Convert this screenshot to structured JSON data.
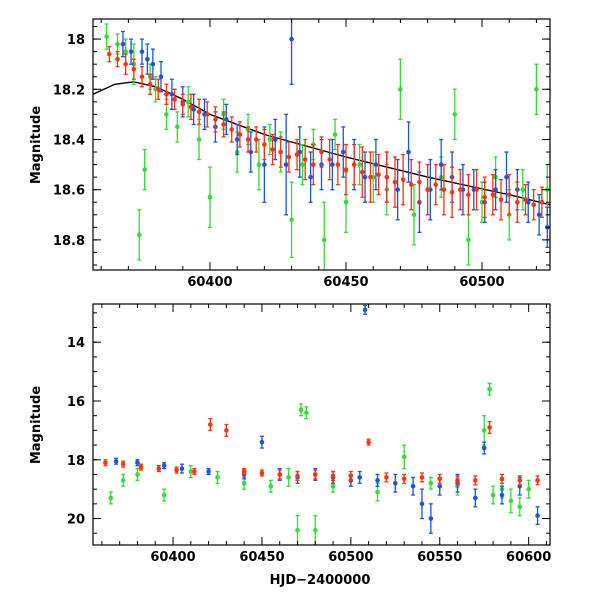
{
  "chart_data": [
    {
      "type": "scatter",
      "title": "",
      "xlabel": "",
      "ylabel": "Magnitude",
      "xlim": [
        60357,
        60525
      ],
      "ylim": [
        18.92,
        17.92
      ],
      "y_inverted": true,
      "x_ticks": [
        60400,
        60450,
        60500
      ],
      "y_ticks": [
        18.0,
        18.2,
        18.4,
        18.6,
        18.8
      ],
      "x_tick_labels": [
        "60400",
        "60450",
        "60500"
      ],
      "y_tick_labels": [
        "18",
        "18.2",
        "18.4",
        "18.6",
        "18.8"
      ],
      "grid": false,
      "legend": "none",
      "colors": {
        "green": "#33dd33",
        "blue": "#1a55dd",
        "red": "#ff3311",
        "model": "#000000"
      },
      "model_curve": {
        "x": [
          60357,
          60365,
          60372,
          60380,
          60390,
          60400,
          60420,
          60450,
          60480,
          60510,
          60525
        ],
        "y": [
          18.22,
          18.18,
          18.17,
          18.19,
          18.24,
          18.3,
          18.38,
          18.47,
          18.55,
          18.62,
          18.66
        ]
      },
      "series": [
        {
          "color": "green",
          "x": [
            60362,
            60366,
            60369,
            60372,
            60374,
            60376,
            60378,
            60380,
            60384,
            60388,
            60392,
            60396,
            60400,
            60405,
            60410,
            60414,
            60418,
            60422,
            60426,
            60430,
            60434,
            60438,
            60442,
            60446,
            60450,
            60455,
            60460,
            60465,
            60470,
            60475,
            60480,
            60485,
            60490,
            60495,
            60500,
            60505,
            60510,
            60515,
            60520,
            60524
          ],
          "y": [
            17.99,
            18.02,
            18.05,
            18.1,
            18.78,
            18.52,
            18.15,
            18.2,
            18.3,
            18.35,
            18.25,
            18.4,
            18.63,
            18.3,
            18.45,
            18.36,
            18.5,
            18.4,
            18.45,
            18.72,
            18.5,
            18.42,
            18.8,
            18.38,
            18.65,
            18.5,
            18.55,
            18.6,
            18.2,
            18.7,
            18.6,
            18.55,
            18.3,
            18.8,
            18.65,
            18.55,
            18.7,
            18.6,
            18.2,
            18.6
          ],
          "err": [
            0.05,
            0.04,
            0.05,
            0.08,
            0.1,
            0.08,
            0.05,
            0.05,
            0.06,
            0.06,
            0.06,
            0.08,
            0.12,
            0.06,
            0.08,
            0.06,
            0.1,
            0.06,
            0.08,
            0.15,
            0.08,
            0.06,
            0.15,
            0.06,
            0.12,
            0.08,
            0.1,
            0.1,
            0.12,
            0.12,
            0.1,
            0.08,
            0.1,
            0.1,
            0.08,
            0.08,
            0.1,
            0.08,
            0.1,
            0.1
          ]
        },
        {
          "color": "blue",
          "x": [
            60368,
            60371,
            60375,
            60377,
            60379,
            60382,
            60386,
            60390,
            60394,
            60398,
            60402,
            60406,
            60410,
            60415,
            60420,
            60424,
            60428,
            60430,
            60433,
            60437,
            60441,
            60445,
            60449,
            60453,
            60457,
            60461,
            60465,
            60469,
            60473,
            60477,
            60481,
            60485,
            60489,
            60493,
            60497,
            60501,
            60505,
            60509,
            60513,
            60517,
            60521,
            60524
          ],
          "y": [
            18.02,
            18.05,
            18.05,
            18.08,
            18.1,
            18.15,
            18.22,
            18.25,
            18.28,
            18.3,
            18.35,
            18.32,
            18.4,
            18.45,
            18.5,
            18.4,
            18.5,
            18.0,
            18.45,
            18.55,
            18.5,
            18.5,
            18.45,
            18.5,
            18.55,
            18.5,
            18.55,
            18.6,
            18.45,
            18.65,
            18.6,
            18.5,
            18.55,
            18.6,
            18.6,
            18.65,
            18.6,
            18.55,
            18.6,
            18.65,
            18.7,
            18.75
          ],
          "err": [
            0.05,
            0.05,
            0.05,
            0.06,
            0.06,
            0.06,
            0.06,
            0.06,
            0.06,
            0.06,
            0.06,
            0.06,
            0.06,
            0.08,
            0.15,
            0.08,
            0.2,
            0.18,
            0.1,
            0.1,
            0.1,
            0.1,
            0.1,
            0.1,
            0.1,
            0.1,
            0.1,
            0.12,
            0.12,
            0.12,
            0.12,
            0.1,
            0.1,
            0.1,
            0.08,
            0.08,
            0.08,
            0.1,
            0.08,
            0.08,
            0.08,
            0.08
          ]
        },
        {
          "color": "red",
          "x": [
            60363,
            60366,
            60369,
            60372,
            60375,
            60378,
            60381,
            60384,
            60387,
            60390,
            60393,
            60396,
            60399,
            60402,
            60405,
            60408,
            60411,
            60414,
            60417,
            60420,
            60423,
            60426,
            60429,
            60432,
            60435,
            60438,
            60441,
            60444,
            60447,
            60450,
            60453,
            60456,
            60459,
            60462,
            60465,
            60468,
            60471,
            60474,
            60477,
            60480,
            60483,
            60486,
            60489,
            60492,
            60495,
            60498,
            60501,
            60504,
            60507,
            60510,
            60513,
            60516,
            60519,
            60522
          ],
          "y": [
            18.06,
            18.08,
            18.1,
            18.12,
            18.15,
            18.18,
            18.2,
            18.22,
            18.24,
            18.26,
            18.27,
            18.29,
            18.3,
            18.32,
            18.34,
            18.36,
            18.38,
            18.4,
            18.4,
            18.42,
            18.44,
            18.45,
            18.47,
            18.46,
            18.48,
            18.5,
            18.45,
            18.48,
            18.5,
            18.52,
            18.5,
            18.53,
            18.55,
            18.54,
            18.55,
            18.57,
            18.56,
            18.58,
            18.57,
            18.6,
            18.58,
            18.6,
            18.61,
            18.6,
            18.62,
            18.6,
            18.63,
            18.62,
            18.64,
            18.62,
            18.65,
            18.64,
            18.66,
            18.65
          ],
          "err": [
            0.03,
            0.03,
            0.04,
            0.04,
            0.04,
            0.04,
            0.04,
            0.04,
            0.04,
            0.04,
            0.05,
            0.05,
            0.05,
            0.05,
            0.05,
            0.05,
            0.05,
            0.05,
            0.05,
            0.06,
            0.06,
            0.06,
            0.06,
            0.06,
            0.08,
            0.08,
            0.06,
            0.08,
            0.08,
            0.1,
            0.08,
            0.1,
            0.1,
            0.08,
            0.1,
            0.1,
            0.1,
            0.1,
            0.08,
            0.1,
            0.08,
            0.1,
            0.1,
            0.08,
            0.08,
            0.08,
            0.08,
            0.08,
            0.08,
            0.08,
            0.08,
            0.06,
            0.06,
            0.06
          ]
        }
      ]
    },
    {
      "type": "scatter",
      "title": "",
      "xlabel": "HJD−2400000",
      "ylabel": "Magnitude",
      "xlim": [
        60355,
        60612
      ],
      "ylim": [
        20.9,
        12.7
      ],
      "y_inverted": true,
      "x_ticks": [
        60400,
        60450,
        60500,
        60550,
        60600
      ],
      "y_ticks": [
        14,
        16,
        18,
        20
      ],
      "x_tick_labels": [
        "60400",
        "60450",
        "60500",
        "60550",
        "60600"
      ],
      "y_tick_labels": [
        "14",
        "16",
        "18",
        "20"
      ],
      "grid": false,
      "legend": "none",
      "colors": {
        "green": "#33dd33",
        "blue": "#1a55dd",
        "red": "#ff3311"
      },
      "series": [
        {
          "color": "green",
          "x": [
            60365,
            60372,
            60380,
            60395,
            60410,
            60425,
            60440,
            60455,
            60465,
            60470,
            60472,
            60475,
            60480,
            60490,
            60500,
            60515,
            60530,
            60545,
            60560,
            60575,
            60578,
            60580,
            60585,
            60590,
            60595,
            60600
          ],
          "y": [
            19.3,
            18.7,
            18.5,
            19.2,
            18.4,
            18.6,
            18.8,
            18.9,
            18.6,
            20.4,
            16.3,
            16.4,
            20.4,
            18.9,
            18.7,
            19.1,
            17.9,
            18.8,
            18.9,
            17.0,
            15.6,
            19.2,
            19.0,
            19.4,
            19.6,
            19.0
          ],
          "err": [
            0.2,
            0.2,
            0.2,
            0.2,
            0.2,
            0.2,
            0.2,
            0.2,
            0.3,
            0.5,
            0.2,
            0.2,
            0.5,
            0.2,
            0.2,
            0.3,
            0.4,
            0.2,
            0.3,
            0.5,
            0.2,
            0.3,
            0.3,
            0.4,
            0.3,
            0.3
          ]
        },
        {
          "color": "blue",
          "x": [
            60368,
            60380,
            60395,
            60405,
            60420,
            60440,
            60450,
            60460,
            60470,
            60480,
            60490,
            60500,
            60505,
            60508,
            60515,
            60525,
            60535,
            60540,
            60545,
            60550,
            60560,
            60570,
            60575,
            60585,
            60595,
            60605
          ],
          "y": [
            18.05,
            18.1,
            18.2,
            18.3,
            18.4,
            18.5,
            17.4,
            18.5,
            18.6,
            18.5,
            18.6,
            18.7,
            18.6,
            12.9,
            18.7,
            18.8,
            18.9,
            19.5,
            20.0,
            18.9,
            18.8,
            19.3,
            17.6,
            19.2,
            18.9,
            19.9
          ],
          "err": [
            0.1,
            0.1,
            0.1,
            0.15,
            0.1,
            0.15,
            0.2,
            0.2,
            0.2,
            0.2,
            0.2,
            0.2,
            0.2,
            0.15,
            0.2,
            0.3,
            0.3,
            0.5,
            0.5,
            0.3,
            0.3,
            0.3,
            0.2,
            0.3,
            0.3,
            0.3
          ]
        },
        {
          "color": "red",
          "x": [
            60362,
            60372,
            60382,
            60392,
            60402,
            60412,
            60421,
            60430,
            60440,
            60450,
            60460,
            60470,
            60480,
            60490,
            60500,
            60510,
            60520,
            60530,
            60540,
            60550,
            60560,
            60570,
            60578,
            60585,
            60595,
            60605
          ],
          "y": [
            18.1,
            18.15,
            18.25,
            18.3,
            18.35,
            18.4,
            16.8,
            17.0,
            18.4,
            18.45,
            18.5,
            18.55,
            18.5,
            18.55,
            18.55,
            17.4,
            18.6,
            18.65,
            18.6,
            18.65,
            18.7,
            18.7,
            16.9,
            18.65,
            18.7,
            18.7
          ],
          "err": [
            0.1,
            0.1,
            0.1,
            0.1,
            0.1,
            0.1,
            0.2,
            0.2,
            0.1,
            0.1,
            0.15,
            0.15,
            0.15,
            0.15,
            0.15,
            0.1,
            0.15,
            0.15,
            0.15,
            0.15,
            0.15,
            0.15,
            0.2,
            0.15,
            0.15,
            0.15
          ]
        }
      ]
    }
  ]
}
